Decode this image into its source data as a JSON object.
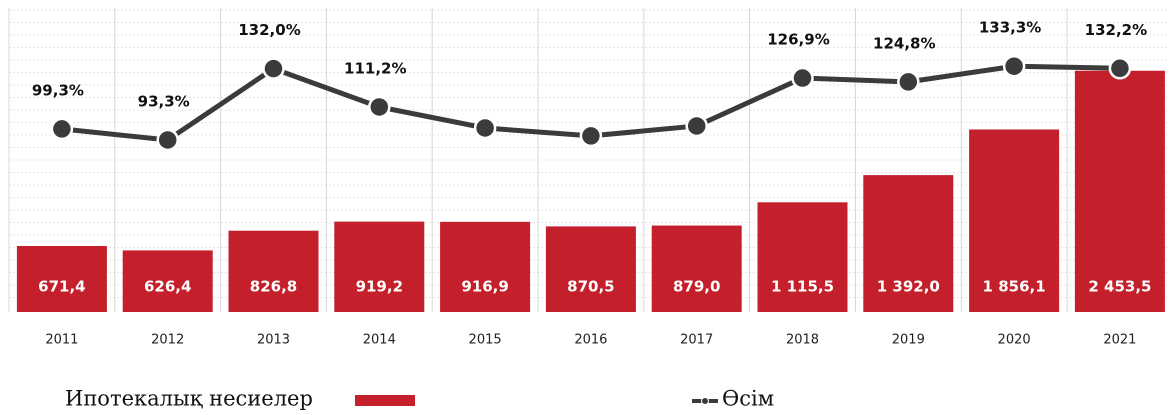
{
  "chart_data": {
    "type": "bar",
    "categories": [
      "2011",
      "2012",
      "2013",
      "2014",
      "2015",
      "2016",
      "2017",
      "2018",
      "2019",
      "2020",
      "2021"
    ],
    "series": [
      {
        "name": "Ипотекалық несиелер",
        "type": "bar",
        "color": "#c3202b",
        "values": [
          671.4,
          626.4,
          826.8,
          919.2,
          916.9,
          870.5,
          879.0,
          1115.5,
          1392.0,
          1856.1,
          2453.5
        ],
        "value_labels": [
          "671,4",
          "626,4",
          "826,8",
          "919,2",
          "916,9",
          "870,5",
          "879,0",
          "1 115,5",
          "1 392,0",
          "1 856,1",
          "2 453,5"
        ]
      },
      {
        "name": "Өсім",
        "type": "line",
        "axis": "y2",
        "color": "#3b3b3b",
        "values": [
          99.3,
          93.3,
          132.0,
          111.2,
          99.8,
          95.5,
          100.9,
          126.9,
          124.8,
          133.3,
          132.2
        ],
        "value_labels": [
          "99,3%",
          "93,3%",
          "132,0%",
          "111,2%",
          null,
          null,
          null,
          "126,9%",
          "124,8%",
          "133,3%",
          "132,2%"
        ]
      }
    ],
    "ylim": [
      0,
      3000
    ],
    "y2lim": [
      0,
      160
    ],
    "grid": true
  }
}
